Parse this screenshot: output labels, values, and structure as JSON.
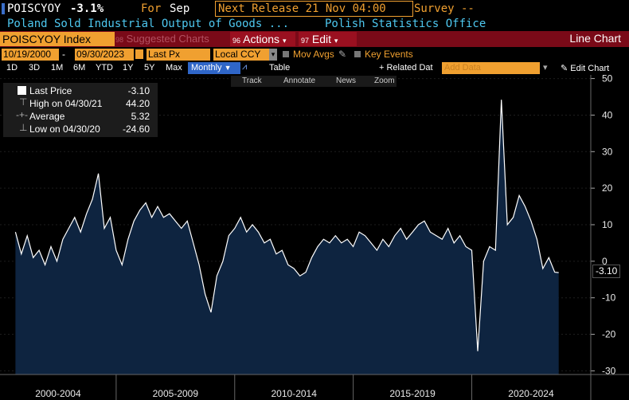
{
  "header": {
    "ticker": "POISCYOY",
    "change": "-3.1%",
    "for_label": "For",
    "period": "Sep",
    "next_release": "Next Release 21 Nov 04:00",
    "survey": "Survey --",
    "description": "Poland Sold Industrial Output of Goods ...",
    "source": "Polish Statistics Office"
  },
  "toolbar": {
    "security": "POISCYOY Index",
    "suggested": "Suggested Charts",
    "actions_num": "96",
    "actions": "Actions",
    "edit_num": "97",
    "edit": "Edit",
    "chart_type": "Line Chart"
  },
  "controls": {
    "start_date": "10/19/2000",
    "end_date": "09/30/2023",
    "price_field": "Last Px",
    "currency": "Local CCY",
    "mov_avgs": "Mov Avgs",
    "key_events": "Key Events"
  },
  "periods": [
    "1D",
    "3D",
    "1M",
    "6M",
    "YTD",
    "1Y",
    "5Y",
    "Max"
  ],
  "frequency": "Monthly",
  "table_label": "Table",
  "related_data": "+ Related Dat",
  "add_data_placeholder": "Add Data",
  "edit_chart": "Edit Chart",
  "tools": [
    "Track",
    "Annotate",
    "News",
    "Zoom"
  ],
  "legend": {
    "last_label": "Last Price",
    "last_value": "-3.10",
    "high_label": "High on 04/30/21",
    "high_value": "44.20",
    "avg_label": "Average",
    "avg_value": "5.32",
    "low_label": "Low on 04/30/20",
    "low_value": "-24.60"
  },
  "last_badge": "-3.10",
  "colors": {
    "accent_orange": "#f0a030",
    "area_fill": "#0e2440",
    "line": "#ffffff",
    "toolbar_red": "#7a0a18"
  },
  "chart_data": {
    "type": "area",
    "title": "Poland Sold Industrial Output of Goods",
    "ylim": [
      -31,
      51
    ],
    "y_ticks": [
      -30,
      -20,
      -10,
      0,
      10,
      20,
      30,
      40,
      50
    ],
    "x_ticks": [
      "2000-2004",
      "2005-2009",
      "2010-2014",
      "2015-2019",
      "2020-2024"
    ],
    "x": [
      "2000-10",
      "2001-01",
      "2001-04",
      "2001-07",
      "2001-10",
      "2002-01",
      "2002-04",
      "2002-07",
      "2002-10",
      "2003-01",
      "2003-04",
      "2003-07",
      "2003-10",
      "2004-01",
      "2004-04",
      "2004-07",
      "2004-10",
      "2005-01",
      "2005-04",
      "2005-07",
      "2005-10",
      "2006-01",
      "2006-04",
      "2006-07",
      "2006-10",
      "2007-01",
      "2007-04",
      "2007-07",
      "2007-10",
      "2008-01",
      "2008-04",
      "2008-07",
      "2008-10",
      "2009-01",
      "2009-04",
      "2009-07",
      "2009-10",
      "2010-01",
      "2010-04",
      "2010-07",
      "2010-10",
      "2011-01",
      "2011-04",
      "2011-07",
      "2011-10",
      "2012-01",
      "2012-04",
      "2012-07",
      "2012-10",
      "2013-01",
      "2013-04",
      "2013-07",
      "2013-10",
      "2014-01",
      "2014-04",
      "2014-07",
      "2014-10",
      "2015-01",
      "2015-04",
      "2015-07",
      "2015-10",
      "2016-01",
      "2016-04",
      "2016-07",
      "2016-10",
      "2017-01",
      "2017-04",
      "2017-07",
      "2017-10",
      "2018-01",
      "2018-04",
      "2018-07",
      "2018-10",
      "2019-01",
      "2019-04",
      "2019-07",
      "2019-10",
      "2020-01",
      "2020-04",
      "2020-07",
      "2020-10",
      "2021-01",
      "2021-04",
      "2021-07",
      "2021-10",
      "2022-01",
      "2022-04",
      "2022-07",
      "2022-10",
      "2023-01",
      "2023-04",
      "2023-07",
      "2023-09"
    ],
    "values": [
      8,
      2,
      7,
      1,
      3,
      -1,
      4,
      0,
      6,
      9,
      12,
      8,
      13,
      17,
      24,
      9,
      12,
      3,
      -1,
      6,
      11,
      14,
      16,
      12,
      15,
      12,
      13,
      11,
      9,
      11,
      5,
      -1,
      -9,
      -14,
      -4,
      0,
      7,
      9,
      12,
      8,
      10,
      8,
      5,
      6,
      2,
      3,
      -1,
      -2,
      -4,
      -3,
      1,
      4,
      6,
      5,
      7,
      5,
      6,
      4,
      8,
      7,
      5,
      3,
      6,
      4,
      7,
      9,
      6,
      8,
      10,
      11,
      8,
      7,
      6,
      9,
      5,
      7,
      4,
      3,
      -24.6,
      0,
      4,
      3,
      44.2,
      10,
      12,
      18,
      15,
      11,
      6,
      -2,
      1,
      -3,
      -3.1
    ]
  }
}
